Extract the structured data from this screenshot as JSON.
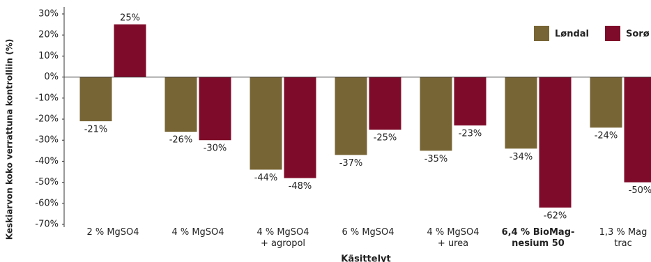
{
  "chart_data": {
    "type": "bar",
    "y_axis_label": "Keskiarvon koko verrattuna kontrolliin (%)",
    "x_axis_label": "Käsittelyt",
    "categories": [
      "2 % MgSO4",
      "4 % MgSO4",
      "4 % MgSO4\n+ agropol",
      "6 % MgSO4",
      "4 % MgSO4\n+ urea",
      "6,4 % BioMag-\nnesium 50",
      "1,3 % Mag\ntrac"
    ],
    "bold_category_index": 5,
    "series": [
      {
        "name": "Løndal",
        "color": "#786535",
        "values": [
          -21,
          -26,
          -44,
          -37,
          -35,
          -34,
          -24
        ],
        "value_labels": [
          "-21%",
          "-26%",
          "-44%",
          "-37%",
          "-35%",
          "-34%",
          "-24%"
        ]
      },
      {
        "name": "Sorø",
        "color": "#7f0b2a",
        "values": [
          25,
          -30,
          -48,
          -25,
          -23,
          -62,
          -50
        ],
        "value_labels": [
          "25%",
          "-30%",
          "-48%",
          "-25%",
          "-23%",
          "-62%",
          "-50%"
        ]
      }
    ],
    "ylim": [
      -70,
      30
    ],
    "yticks": [
      {
        "value": -70,
        "label": "-70%"
      },
      {
        "value": -60,
        "label": "-60%"
      },
      {
        "value": -50,
        "label": "-50%"
      },
      {
        "value": -40,
        "label": "-40%"
      },
      {
        "value": -30,
        "label": "-30%"
      },
      {
        "value": -20,
        "label": "-20%"
      },
      {
        "value": -10,
        "label": "-10%"
      },
      {
        "value": 0,
        "label": "0%"
      },
      {
        "value": 10,
        "label": "10%"
      },
      {
        "value": 20,
        "label": "20%"
      },
      {
        "value": 30,
        "label": "30%"
      }
    ],
    "grid": false,
    "legend": "top-right"
  }
}
